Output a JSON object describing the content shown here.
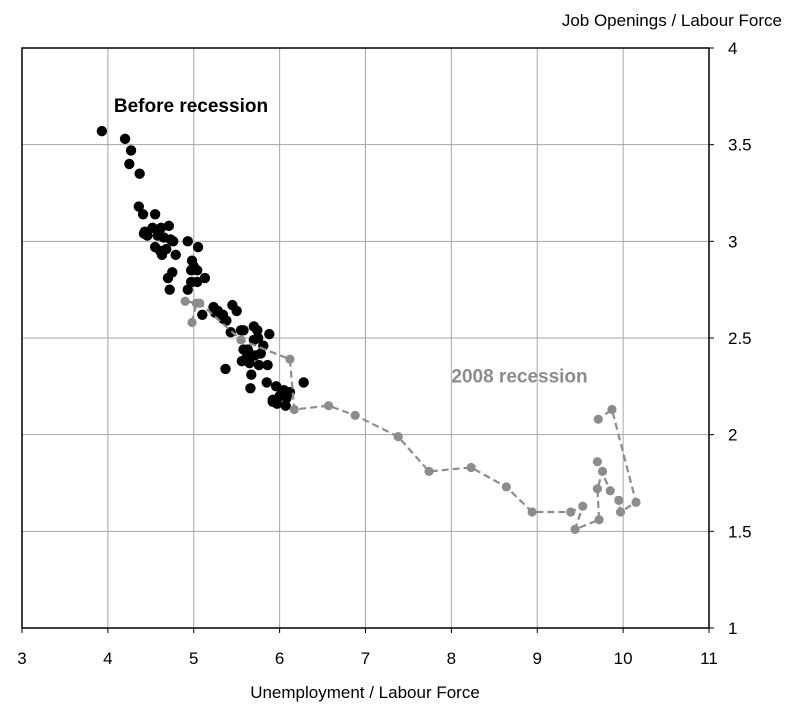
{
  "chart_data": {
    "type": "scatter",
    "title": "",
    "xlabel": "Unemployment / Labour Force",
    "ylabel": "Job Openings / Labour Force",
    "xlim": [
      3,
      11
    ],
    "ylim": [
      1,
      4
    ],
    "xticks": [
      "3",
      "4",
      "5",
      "6",
      "7",
      "8",
      "9",
      "10",
      "11"
    ],
    "yticks": [
      "1",
      "1.5",
      "2",
      "2.5",
      "3",
      "3.5",
      "4"
    ],
    "grid": true,
    "y_axis_side": "right",
    "series": [
      {
        "name": "Before recession",
        "color": "#000000",
        "style": "points",
        "points": [
          [
            3.93,
            3.57
          ],
          [
            4.2,
            3.53
          ],
          [
            4.27,
            3.47
          ],
          [
            4.25,
            3.4
          ],
          [
            4.37,
            3.35
          ],
          [
            4.36,
            3.18
          ],
          [
            4.41,
            3.14
          ],
          [
            4.55,
            3.14
          ],
          [
            4.71,
            3.08
          ],
          [
            4.62,
            3.07
          ],
          [
            4.52,
            3.07
          ],
          [
            4.43,
            3.05
          ],
          [
            4.42,
            3.04
          ],
          [
            4.58,
            3.03
          ],
          [
            4.46,
            3.03
          ],
          [
            4.65,
            3.02
          ],
          [
            4.76,
            3.0
          ],
          [
            4.93,
            3.0
          ],
          [
            4.73,
            3.01
          ],
          [
            5.05,
            2.97
          ],
          [
            4.55,
            2.97
          ],
          [
            4.68,
            2.96
          ],
          [
            4.61,
            2.95
          ],
          [
            4.63,
            2.93
          ],
          [
            4.79,
            2.93
          ],
          [
            4.98,
            2.9
          ],
          [
            5.0,
            2.87
          ],
          [
            4.97,
            2.85
          ],
          [
            5.04,
            2.85
          ],
          [
            4.75,
            2.84
          ],
          [
            4.7,
            2.81
          ],
          [
            5.13,
            2.81
          ],
          [
            5.04,
            2.79
          ],
          [
            4.97,
            2.79
          ],
          [
            4.72,
            2.75
          ],
          [
            4.93,
            2.75
          ],
          [
            5.1,
            2.62
          ],
          [
            5.23,
            2.66
          ],
          [
            5.25,
            2.63
          ],
          [
            5.34,
            2.62
          ],
          [
            5.28,
            2.64
          ],
          [
            5.45,
            2.67
          ],
          [
            5.5,
            2.64
          ],
          [
            5.38,
            2.59
          ],
          [
            5.34,
            2.6
          ],
          [
            5.43,
            2.53
          ],
          [
            5.55,
            2.54
          ],
          [
            5.58,
            2.54
          ],
          [
            5.7,
            2.56
          ],
          [
            5.74,
            2.54
          ],
          [
            5.88,
            2.52
          ],
          [
            5.75,
            2.5
          ],
          [
            5.7,
            2.49
          ],
          [
            5.81,
            2.46
          ],
          [
            5.63,
            2.44
          ],
          [
            5.58,
            2.44
          ],
          [
            5.62,
            2.4
          ],
          [
            5.71,
            2.41
          ],
          [
            5.78,
            2.42
          ],
          [
            5.56,
            2.38
          ],
          [
            5.65,
            2.37
          ],
          [
            5.76,
            2.36
          ],
          [
            5.86,
            2.36
          ],
          [
            5.37,
            2.34
          ],
          [
            5.67,
            2.31
          ],
          [
            5.85,
            2.27
          ],
          [
            5.96,
            2.25
          ],
          [
            5.66,
            2.24
          ],
          [
            6.05,
            2.23
          ],
          [
            6.12,
            2.22
          ],
          [
            6.28,
            2.27
          ],
          [
            6.0,
            2.2
          ],
          [
            6.08,
            2.19
          ],
          [
            5.92,
            2.18
          ],
          [
            5.92,
            2.17
          ],
          [
            5.97,
            2.16
          ],
          [
            6.07,
            2.15
          ]
        ]
      },
      {
        "name": "2008 recession",
        "color": "#8c8c8c",
        "style": "dashed-line-markers",
        "points": [
          [
            4.98,
            2.58
          ],
          [
            5.03,
            2.68
          ],
          [
            4.9,
            2.69
          ],
          [
            5.07,
            2.68
          ],
          [
            5.55,
            2.49
          ],
          [
            6.12,
            2.39
          ],
          [
            6.17,
            2.13
          ],
          [
            6.57,
            2.15
          ],
          [
            6.88,
            2.1
          ],
          [
            7.38,
            1.99
          ],
          [
            7.74,
            1.81
          ],
          [
            8.23,
            1.83
          ],
          [
            8.64,
            1.73
          ],
          [
            8.94,
            1.6
          ],
          [
            9.39,
            1.6
          ],
          [
            9.53,
            1.63
          ],
          [
            9.44,
            1.51
          ],
          [
            9.72,
            1.56
          ],
          [
            9.7,
            1.72
          ],
          [
            9.76,
            1.81
          ],
          [
            9.7,
            1.86
          ],
          [
            9.85,
            1.71
          ],
          [
            9.95,
            1.66
          ],
          [
            9.97,
            1.6
          ],
          [
            10.15,
            1.65
          ],
          [
            9.87,
            2.13
          ],
          [
            9.71,
            2.08
          ]
        ]
      }
    ],
    "annotations": [
      {
        "text": "Before recession",
        "color": "#000000",
        "anchor": [
          4.07,
          3.67
        ]
      },
      {
        "text": "2008 recession",
        "color": "#8c8c8c",
        "anchor": [
          8.0,
          2.27
        ]
      }
    ]
  }
}
